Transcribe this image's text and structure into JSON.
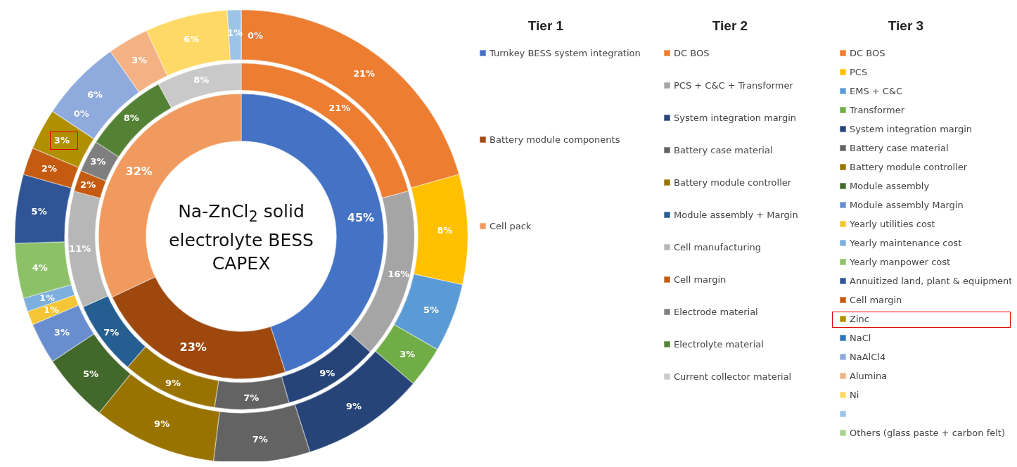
{
  "chart_data": [
    {
      "type": "donut",
      "title": "Na-ZnCl$_{2}$ solid electrolyte BESS CAPEX",
      "legend_title": "Tier 1",
      "legend": "right",
      "categories": [
        "Turnkey BESS system integration",
        "Battery module components",
        "Cell pack"
      ],
      "values": [
        45,
        23,
        32
      ],
      "value_labels": [
        "45%",
        "23%",
        "32%"
      ],
      "colors": [
        "#4472c4",
        "#9e480e",
        "#f09a5f"
      ]
    },
    {
      "type": "donut",
      "legend_title": "Tier 2",
      "legend": "right",
      "categories": [
        "DC BOS",
        "PCS + C&C + Transformer",
        "System integration margin",
        "Battery case material",
        "Battery module controller",
        "Module assembly + Margin",
        "Cell manufacturing",
        "Cell margin",
        "Electrode material",
        "Electrolyte material",
        "Current collector material"
      ],
      "values": [
        21,
        16,
        9,
        7,
        9,
        7,
        11,
        2,
        3,
        8,
        8
      ],
      "value_labels": [
        "21%",
        "16%",
        "9%",
        "7%",
        "9%",
        "7%",
        "11%",
        "2%",
        "3%",
        "8%",
        "8%"
      ],
      "colors": [
        "#ed7d31",
        "#a5a5a5",
        "#264478",
        "#636363",
        "#997300",
        "#255e91",
        "#b7b7b7",
        "#c55a11",
        "#7f7f7f",
        "#548235",
        "#c9c9c9"
      ]
    },
    {
      "type": "donut",
      "legend_title": "Tier 3",
      "legend": "right",
      "categories": [
        "DC BOS",
        "PCS",
        "EMS + C&C",
        "Transformer",
        "System integration margin",
        "Battery case material",
        "Battery module controller",
        "Module assembly",
        "Module assembly Margin",
        "Yearly utilities cost",
        "Yearly maintenance cost",
        "Yearly manpower cost",
        "Annuitized land, plant & equipment",
        "Cell margin",
        "Zinc",
        "NaCl",
        "NaAlCl4",
        "Alumina",
        "Ni",
        null,
        "Others (glass paste + carbon felt)"
      ],
      "values": [
        21,
        8,
        5,
        3,
        9,
        7,
        9,
        5,
        3,
        1,
        1,
        4,
        5,
        2,
        3,
        0,
        6,
        3,
        6,
        1,
        0
      ],
      "value_labels": [
        "21%",
        "8%",
        "5%",
        "3%",
        "9%",
        "7%",
        "9%",
        "5%",
        "3%",
        "1%",
        "1%",
        "4%",
        "5%",
        "2%",
        "3%",
        "0%",
        "6%",
        "3%",
        "6%",
        "1%",
        "0%"
      ],
      "colors": [
        "#ed7d31",
        "#ffc000",
        "#5b9bd5",
        "#70ad47",
        "#264478",
        "#636363",
        "#997300",
        "#43682b",
        "#698ed0",
        "#f4c534",
        "#7cafdd",
        "#8cc168",
        "#2f5597",
        "#c55a11",
        "#b08f00",
        "#2e75b6",
        "#8faadc",
        "#f4b183",
        "#ffd966",
        "#9dc3e6",
        "#a9d18e"
      ]
    }
  ]
}
